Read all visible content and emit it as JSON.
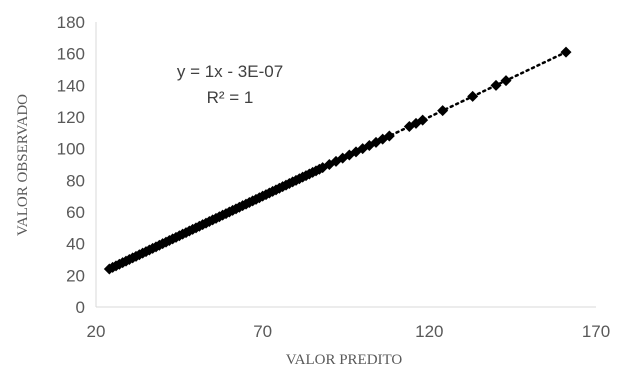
{
  "chart_data": {
    "type": "scatter",
    "xlabel": "VALOR PREDITO",
    "ylabel": "VALOR OBSERVADO",
    "xlim": [
      20,
      170
    ],
    "ylim": [
      0,
      180
    ],
    "xticks": [
      "20",
      "70",
      "120",
      "170"
    ],
    "yticks": [
      "0",
      "20",
      "40",
      "60",
      "80",
      "100",
      "120",
      "140",
      "160",
      "180"
    ],
    "grid": false,
    "legend": "none",
    "annotations": [
      "y = 1x - 3E-07",
      "R² = 1"
    ],
    "marker_color": "#000000",
    "trendline": {
      "type": "linear",
      "style": "dotted",
      "slope": 1,
      "intercept": -3e-07
    },
    "series": [
      {
        "x": [
          24,
          25,
          26,
          27,
          28,
          29,
          30,
          31,
          32,
          33,
          34,
          35,
          36,
          37,
          38,
          39,
          40,
          41,
          42,
          43,
          44,
          45,
          46,
          47,
          48,
          49,
          50,
          51,
          52,
          53,
          54,
          55,
          56,
          57,
          58,
          59,
          60,
          61,
          62,
          63,
          64,
          65,
          66,
          67,
          68,
          69,
          70,
          71,
          72,
          73,
          74,
          75,
          76,
          77,
          78,
          79,
          80,
          81,
          82,
          83,
          84,
          85,
          86,
          87,
          88,
          90,
          92,
          94,
          96,
          98,
          100,
          102,
          104,
          106,
          108,
          114,
          116,
          118,
          124,
          133,
          140,
          143,
          161
        ],
        "y": [
          24,
          25,
          26,
          27,
          28,
          29,
          30,
          31,
          32,
          33,
          34,
          35,
          36,
          37,
          38,
          39,
          40,
          41,
          42,
          43,
          44,
          45,
          46,
          47,
          48,
          49,
          50,
          51,
          52,
          53,
          54,
          55,
          56,
          57,
          58,
          59,
          60,
          61,
          62,
          63,
          64,
          65,
          66,
          67,
          68,
          69,
          70,
          71,
          72,
          73,
          74,
          75,
          76,
          77,
          78,
          79,
          80,
          81,
          82,
          83,
          84,
          85,
          86,
          87,
          88,
          90,
          92,
          94,
          96,
          98,
          100,
          102,
          104,
          106,
          108,
          114,
          116,
          118,
          124,
          133,
          140,
          143,
          161
        ]
      }
    ]
  }
}
